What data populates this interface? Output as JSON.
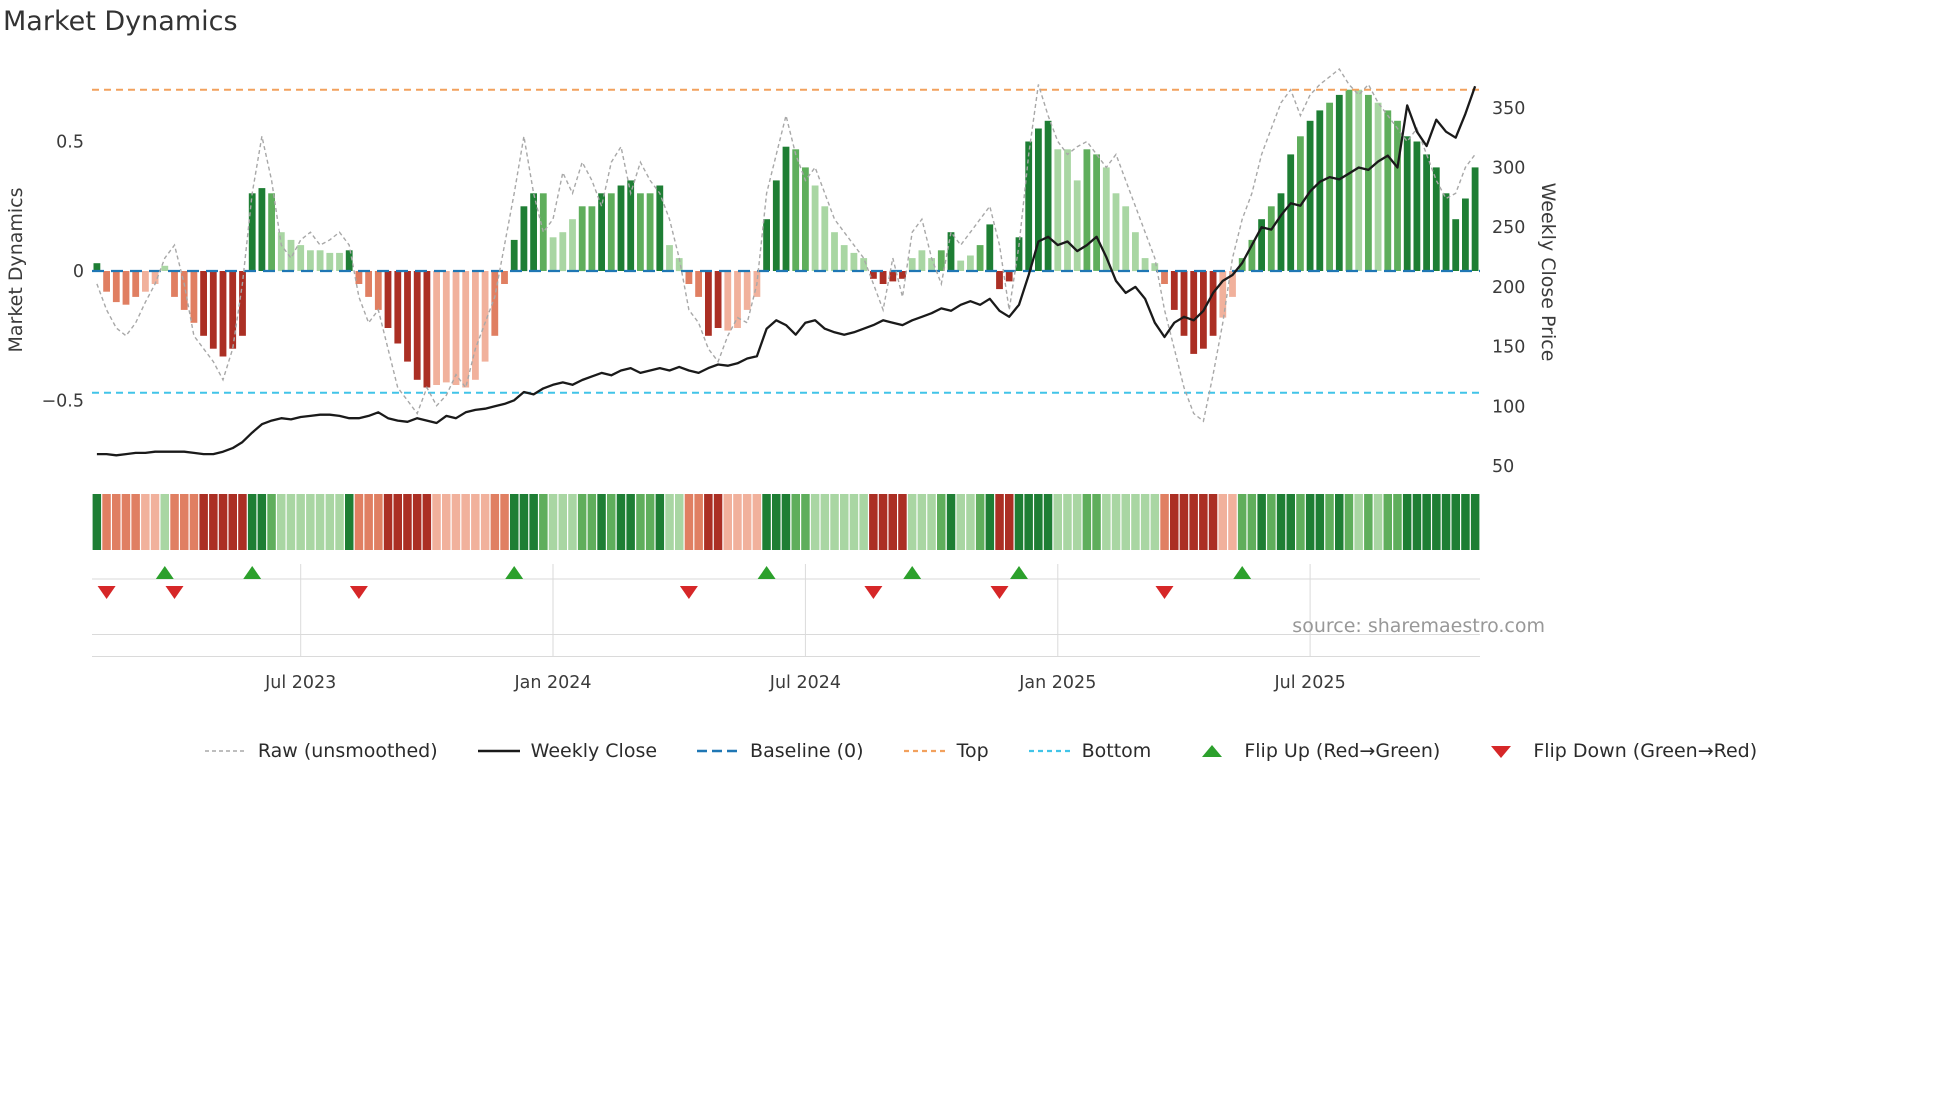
{
  "title": "Market Dynamics",
  "axes": {
    "left_label": "Market Dynamics",
    "right_label": "Weekly Close Price",
    "left_tick_labels": [
      "0.5",
      "0",
      "−0.5"
    ],
    "left_tick_values": [
      0.5,
      0,
      -0.5
    ],
    "right_tick_labels": [
      "350",
      "300",
      "250",
      "200",
      "150",
      "100",
      "50"
    ],
    "right_tick_values": [
      350,
      300,
      250,
      200,
      150,
      100,
      50
    ]
  },
  "source": "source: sharemaestro.com",
  "legend": {
    "items": [
      {
        "label": "Raw (unsmoothed)",
        "swatch": "dashed-gray"
      },
      {
        "label": "Weekly Close",
        "swatch": "solid-black"
      },
      {
        "label": "Baseline (0)",
        "swatch": "dashed-blue"
      },
      {
        "label": "Top",
        "swatch": "dashed-orange"
      },
      {
        "label": "Bottom",
        "swatch": "dashed-cyan"
      },
      {
        "label": "Flip Up (Red→Green)",
        "swatch": "triangle-up-green"
      },
      {
        "label": "Flip Down (Green→Red)",
        "swatch": "triangle-down-red"
      }
    ]
  },
  "colors": {
    "g1": "#a9d6a3",
    "g2": "#5fae5c",
    "g3": "#1e7e34",
    "r1": "#f1b19c",
    "r2": "#e07f62",
    "r3": "#ab2f24",
    "raw": "#a8a8a8",
    "price": "#1a1a1a",
    "baseline": "#1f77b4",
    "top": "#f2a15d",
    "bottom": "#41c4e8",
    "flip_up": "#2ca02c",
    "flip_down": "#d62728",
    "grid": "#dadada",
    "tick_text": "#3b3b3b"
  },
  "chart_data": {
    "type": "combo-bar-line",
    "description": "Weekly market-dynamics oscillator bars (left axis) with raw unsmoothed dashed line, weekly close price line (right axis), color heat strip and flip markers",
    "n_weeks": 143,
    "left_ylim": [
      -0.8,
      0.85
    ],
    "right_ylim": [
      40,
      385
    ],
    "baseline": 0,
    "top_line": 0.7,
    "bottom_line": -0.47,
    "x_tick_labels": [
      "Jul 2023",
      "Jan 2024",
      "Jul 2024",
      "Jan 2025",
      "Jul 2025"
    ],
    "x_tick_indices": [
      21,
      47,
      73,
      99,
      125
    ],
    "flip_up_indices": [
      7,
      16,
      43,
      69,
      84,
      95,
      118
    ],
    "flip_down_indices": [
      1,
      8,
      27,
      61,
      80,
      93,
      110
    ],
    "bars": [
      0.03,
      -0.08,
      -0.12,
      -0.13,
      -0.1,
      -0.08,
      -0.05,
      0.02,
      -0.1,
      -0.15,
      -0.2,
      -0.25,
      -0.3,
      -0.33,
      -0.3,
      -0.25,
      0.3,
      0.32,
      0.3,
      0.15,
      0.12,
      0.1,
      0.08,
      0.08,
      0.07,
      0.07,
      0.08,
      -0.05,
      -0.1,
      -0.15,
      -0.22,
      -0.28,
      -0.35,
      -0.42,
      -0.45,
      -0.44,
      -0.43,
      -0.44,
      -0.45,
      -0.42,
      -0.35,
      -0.25,
      -0.05,
      0.12,
      0.25,
      0.3,
      0.3,
      0.13,
      0.15,
      0.2,
      0.25,
      0.25,
      0.3,
      0.3,
      0.33,
      0.35,
      0.3,
      0.3,
      0.33,
      0.1,
      0.05,
      -0.05,
      -0.1,
      -0.25,
      -0.22,
      -0.23,
      -0.22,
      -0.15,
      -0.1,
      0.2,
      0.35,
      0.48,
      0.47,
      0.4,
      0.33,
      0.25,
      0.15,
      0.1,
      0.07,
      0.05,
      -0.03,
      -0.05,
      -0.04,
      -0.03,
      0.05,
      0.08,
      0.05,
      0.08,
      0.15,
      0.04,
      0.06,
      0.1,
      0.18,
      -0.07,
      -0.04,
      0.13,
      0.5,
      0.55,
      0.58,
      0.47,
      0.47,
      0.35,
      0.47,
      0.45,
      0.4,
      0.3,
      0.25,
      0.15,
      0.05,
      0.03,
      -0.05,
      -0.15,
      -0.25,
      -0.32,
      -0.3,
      -0.25,
      -0.18,
      -0.1,
      0.05,
      0.12,
      0.2,
      0.25,
      0.3,
      0.45,
      0.52,
      0.58,
      0.62,
      0.65,
      0.68,
      0.7,
      0.7,
      0.68,
      0.65,
      0.62,
      0.58,
      0.52,
      0.5,
      0.45,
      0.4,
      0.3,
      0.2,
      0.28,
      0.4
    ],
    "bar_shades": [
      "g3",
      "r2",
      "r2",
      "r2",
      "r2",
      "r1",
      "r1",
      "g1",
      "r2",
      "r2",
      "r2",
      "r3",
      "r3",
      "r3",
      "r3",
      "r3",
      "g3",
      "g3",
      "g2",
      "g1",
      "g1",
      "g1",
      "g1",
      "g1",
      "g1",
      "g1",
      "g3",
      "r2",
      "r2",
      "r2",
      "r3",
      "r3",
      "r3",
      "r3",
      "r3",
      "r1",
      "r1",
      "r1",
      "r1",
      "r1",
      "r1",
      "r2",
      "r2",
      "g3",
      "g3",
      "g3",
      "g2",
      "g1",
      "g1",
      "g1",
      "g2",
      "g2",
      "g3",
      "g2",
      "g3",
      "g3",
      "g2",
      "g2",
      "g3",
      "g1",
      "g1",
      "r2",
      "r2",
      "r3",
      "r3",
      "r1",
      "r1",
      "r1",
      "r1",
      "g3",
      "g3",
      "g3",
      "g2",
      "g2",
      "g1",
      "g1",
      "g1",
      "g1",
      "g1",
      "g1",
      "r3",
      "r3",
      "r3",
      "r3",
      "g1",
      "g1",
      "g1",
      "g2",
      "g3",
      "g1",
      "g1",
      "g2",
      "g3",
      "r3",
      "r3",
      "g3",
      "g3",
      "g3",
      "g3",
      "g1",
      "g1",
      "g1",
      "g2",
      "g2",
      "g1",
      "g1",
      "g1",
      "g1",
      "g1",
      "g1",
      "r2",
      "r3",
      "r3",
      "r3",
      "r3",
      "r3",
      "r1",
      "r1",
      "g2",
      "g2",
      "g3",
      "g2",
      "g3",
      "g3",
      "g2",
      "g3",
      "g3",
      "g2",
      "g3",
      "g2",
      "g1",
      "g2",
      "g1",
      "g2",
      "g2",
      "g3",
      "g3",
      "g3",
      "g3",
      "g3",
      "g3",
      "g3",
      "g3"
    ],
    "raw": [
      -0.05,
      -0.15,
      -0.22,
      -0.25,
      -0.2,
      -0.12,
      -0.05,
      0.05,
      0.1,
      -0.05,
      -0.25,
      -0.3,
      -0.35,
      -0.42,
      -0.3,
      -0.05,
      0.3,
      0.52,
      0.35,
      0.1,
      0.05,
      0.12,
      0.15,
      0.1,
      0.12,
      0.15,
      0.1,
      -0.1,
      -0.2,
      -0.15,
      -0.3,
      -0.45,
      -0.5,
      -0.55,
      -0.45,
      -0.52,
      -0.48,
      -0.4,
      -0.45,
      -0.3,
      -0.2,
      -0.1,
      0.1,
      0.3,
      0.52,
      0.3,
      0.15,
      0.2,
      0.38,
      0.3,
      0.42,
      0.35,
      0.25,
      0.42,
      0.48,
      0.3,
      0.42,
      0.35,
      0.3,
      0.2,
      0.05,
      -0.15,
      -0.2,
      -0.3,
      -0.35,
      -0.25,
      -0.18,
      -0.2,
      -0.05,
      0.3,
      0.45,
      0.6,
      0.45,
      0.35,
      0.4,
      0.3,
      0.2,
      0.15,
      0.1,
      0.05,
      -0.05,
      -0.15,
      0.05,
      -0.1,
      0.15,
      0.2,
      0.05,
      -0.05,
      0.15,
      0.1,
      0.15,
      0.2,
      0.25,
      0.1,
      -0.15,
      0.1,
      0.45,
      0.72,
      0.6,
      0.5,
      0.45,
      0.48,
      0.5,
      0.45,
      0.4,
      0.45,
      0.35,
      0.25,
      0.15,
      0.05,
      -0.15,
      -0.3,
      -0.45,
      -0.55,
      -0.58,
      -0.4,
      -0.2,
      0.05,
      0.2,
      0.3,
      0.45,
      0.55,
      0.65,
      0.7,
      0.6,
      0.68,
      0.72,
      0.75,
      0.78,
      0.72,
      0.68,
      0.72,
      0.65,
      0.6,
      0.55,
      0.5,
      0.55,
      0.45,
      0.35,
      0.28,
      0.3,
      0.4,
      0.45
    ],
    "price": [
      60,
      60,
      59,
      60,
      61,
      61,
      62,
      62,
      62,
      62,
      61,
      60,
      60,
      62,
      65,
      70,
      78,
      85,
      88,
      90,
      89,
      91,
      92,
      93,
      93,
      92,
      90,
      90,
      92,
      95,
      90,
      88,
      87,
      90,
      88,
      86,
      92,
      90,
      95,
      97,
      98,
      100,
      102,
      105,
      112,
      110,
      115,
      118,
      120,
      118,
      122,
      125,
      128,
      126,
      130,
      132,
      128,
      130,
      132,
      130,
      133,
      130,
      128,
      132,
      135,
      134,
      136,
      140,
      142,
      165,
      172,
      168,
      160,
      170,
      172,
      165,
      162,
      160,
      162,
      165,
      168,
      172,
      170,
      168,
      172,
      175,
      178,
      182,
      180,
      185,
      188,
      185,
      190,
      180,
      175,
      185,
      210,
      238,
      242,
      235,
      238,
      230,
      235,
      242,
      225,
      205,
      195,
      200,
      190,
      170,
      158,
      170,
      175,
      172,
      180,
      195,
      205,
      210,
      220,
      235,
      250,
      248,
      260,
      270,
      268,
      280,
      288,
      292,
      290,
      295,
      300,
      298,
      305,
      310,
      300,
      352,
      330,
      318,
      340,
      330,
      325,
      345,
      368
    ]
  }
}
